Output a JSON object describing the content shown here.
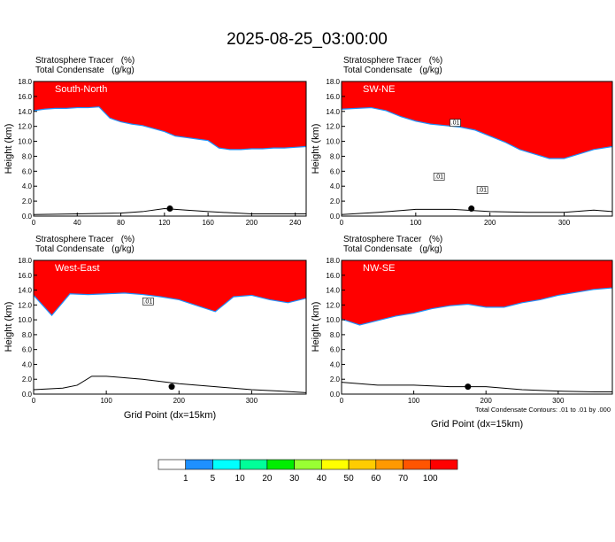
{
  "figure": {
    "title": "2025-08-25_03:00:00",
    "note": "Total Condensate Contours: .01 to .01 by .000",
    "xlabel": "Grid Point (dx=15km)",
    "ylabel": "Height (km)",
    "series_line1": "Stratosphere Tracer   (%)",
    "series_line2": "Total Condensate   (g/kg)"
  },
  "colorbar": {
    "labels": [
      "1",
      "5",
      "10",
      "20",
      "30",
      "40",
      "50",
      "60",
      "70",
      "100"
    ],
    "colors": [
      "#ffffff",
      "#1e90ff",
      "#00ffff",
      "#00ff99",
      "#00ee00",
      "#99ff33",
      "#ffff00",
      "#ffcc00",
      "#ff9900",
      "#ff5500",
      "#ff0000"
    ]
  },
  "chart_data": [
    {
      "type": "area",
      "panel": "South-North",
      "xlim": [
        0,
        250
      ],
      "ylim": [
        0,
        18
      ],
      "xticks": [
        "0",
        "40",
        "80",
        "120",
        "160",
        "200",
        "240"
      ],
      "yticks": [
        "0.0",
        "2.0",
        "4.0",
        "6.0",
        "8.0",
        "10.0",
        "12.0",
        "14.0",
        "16.0",
        "18.0"
      ],
      "tracer_base_height_km": {
        "x": [
          0,
          10,
          20,
          30,
          40,
          50,
          60,
          70,
          80,
          90,
          100,
          110,
          120,
          130,
          140,
          150,
          160,
          170,
          180,
          190,
          200,
          210,
          220,
          230,
          240,
          250
        ],
        "y": [
          15.0,
          15.2,
          15.3,
          15.3,
          15.4,
          15.4,
          15.5,
          14.0,
          13.5,
          13.2,
          13.0,
          12.6,
          12.2,
          11.6,
          11.4,
          11.2,
          11.0,
          10.0,
          9.8,
          9.8,
          9.9,
          9.9,
          10.0,
          10.0,
          10.1,
          10.2
        ]
      },
      "terrain_height_km": {
        "x": [
          0,
          40,
          80,
          100,
          120,
          140,
          160,
          200,
          250
        ],
        "y": [
          0.2,
          0.3,
          0.4,
          0.6,
          1.0,
          0.8,
          0.6,
          0.3,
          0.3
        ]
      },
      "marker_x": 125,
      "contour_labels": []
    },
    {
      "type": "area",
      "panel": "SW-NE",
      "xlim": [
        0,
        365
      ],
      "ylim": [
        0,
        18
      ],
      "xticks": [
        "0",
        "100",
        "200",
        "300"
      ],
      "yticks": [
        "0.0",
        "2.0",
        "4.0",
        "6.0",
        "8.0",
        "10.0",
        "12.0",
        "14.0",
        "16.0",
        "18.0"
      ],
      "tracer_base_height_km": {
        "x": [
          0,
          20,
          40,
          60,
          80,
          100,
          120,
          140,
          160,
          180,
          200,
          220,
          240,
          260,
          280,
          300,
          320,
          340,
          365
        ],
        "y": [
          15.2,
          15.3,
          15.4,
          15.0,
          14.2,
          13.6,
          13.2,
          13.0,
          12.8,
          12.4,
          11.6,
          10.8,
          9.8,
          9.2,
          8.6,
          8.6,
          9.2,
          9.8,
          10.2
        ]
      },
      "terrain_height_km": {
        "x": [
          0,
          50,
          100,
          150,
          200,
          250,
          300,
          340,
          365
        ],
        "y": [
          0.2,
          0.5,
          0.9,
          0.9,
          0.6,
          0.5,
          0.5,
          0.8,
          0.6
        ]
      },
      "marker_x": 175,
      "contour_labels": [
        ".01",
        ".01",
        ".01"
      ]
    },
    {
      "type": "area",
      "panel": "West-East",
      "xlim": [
        0,
        375
      ],
      "ylim": [
        0,
        18
      ],
      "xticks": [
        "0",
        "100",
        "200",
        "300"
      ],
      "yticks": [
        "0.0",
        "2.0",
        "4.0",
        "6.0",
        "8.0",
        "10.0",
        "12.0",
        "14.0",
        "16.0",
        "18.0"
      ],
      "tracer_base_height_km": {
        "x": [
          0,
          25,
          50,
          75,
          100,
          125,
          150,
          175,
          200,
          225,
          250,
          275,
          300,
          325,
          350,
          375
        ],
        "y": [
          14.2,
          11.5,
          14.4,
          14.3,
          14.4,
          14.5,
          14.3,
          14.0,
          13.6,
          12.8,
          12.0,
          14.0,
          14.2,
          13.6,
          13.2,
          13.8
        ]
      },
      "terrain_height_km": {
        "x": [
          0,
          40,
          60,
          80,
          100,
          150,
          200,
          250,
          300,
          340,
          375
        ],
        "y": [
          0.6,
          0.8,
          1.2,
          2.4,
          2.4,
          2.0,
          1.4,
          1.0,
          0.6,
          0.4,
          0.2
        ]
      },
      "marker_x": 190,
      "contour_labels": [
        ".01"
      ]
    },
    {
      "type": "area",
      "panel": "NW-SE",
      "xlim": [
        0,
        375
      ],
      "ylim": [
        0,
        18
      ],
      "xticks": [
        "0",
        "100",
        "200",
        "300"
      ],
      "yticks": [
        "0.0",
        "2.0",
        "4.0",
        "6.0",
        "8.0",
        "10.0",
        "12.0",
        "14.0",
        "16.0",
        "18.0"
      ],
      "tracer_base_height_km": {
        "x": [
          0,
          25,
          50,
          75,
          100,
          125,
          150,
          175,
          200,
          225,
          250,
          275,
          300,
          325,
          350,
          375
        ],
        "y": [
          11.0,
          10.2,
          10.8,
          11.4,
          11.8,
          12.4,
          12.8,
          13.0,
          12.6,
          12.6,
          13.2,
          13.6,
          14.2,
          14.6,
          15.0,
          15.2
        ]
      },
      "terrain_height_km": {
        "x": [
          0,
          50,
          100,
          150,
          200,
          250,
          300,
          350,
          375
        ],
        "y": [
          1.6,
          1.2,
          1.2,
          1.0,
          1.0,
          0.6,
          0.4,
          0.3,
          0.3
        ]
      },
      "marker_x": 175,
      "contour_labels": []
    }
  ]
}
